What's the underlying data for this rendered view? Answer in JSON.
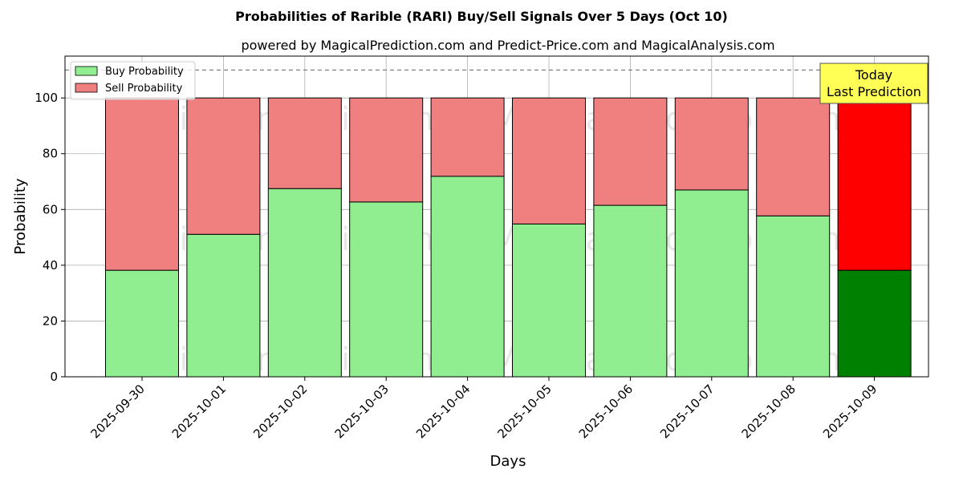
{
  "chart_data": {
    "type": "bar",
    "stacked": true,
    "title": "Probabilities of Rarible (RARI) Buy/Sell Signals Over 5 Days (Oct 10)",
    "subtitle": "powered by MagicalPrediction.com and Predict-Price.com and MagicalAnalysis.com",
    "xlabel": "Days",
    "ylabel": "Probability",
    "ylim": [
      0,
      115
    ],
    "yticks": [
      0,
      20,
      40,
      60,
      80,
      100
    ],
    "grid": true,
    "legend_position": "top-left",
    "categories": [
      "2025-09-30",
      "2025-10-01",
      "2025-10-02",
      "2025-10-03",
      "2025-10-04",
      "2025-10-05",
      "2025-10-06",
      "2025-10-07",
      "2025-10-08",
      "2025-10-09"
    ],
    "series": [
      {
        "name": "Buy Probability",
        "values": [
          38.2,
          51.1,
          67.5,
          62.7,
          71.9,
          54.8,
          61.5,
          67.0,
          57.7,
          38.2
        ]
      },
      {
        "name": "Sell Probability",
        "values": [
          61.8,
          48.9,
          32.5,
          37.3,
          28.1,
          45.2,
          38.5,
          33.0,
          42.3,
          61.8
        ]
      }
    ],
    "colors": {
      "buy": "#90ee90",
      "sell": "#f08080",
      "buy_highlight": "#008000",
      "sell_highlight": "#ff0000",
      "annotation_box": "#ffff55"
    },
    "highlight_index": 9,
    "reference_line": 110,
    "annotation": {
      "lines": [
        "Today",
        "Last Prediction"
      ]
    },
    "watermarks": [
      "MagicalAnalysis.com",
      "MagicalPrediction.com"
    ]
  }
}
